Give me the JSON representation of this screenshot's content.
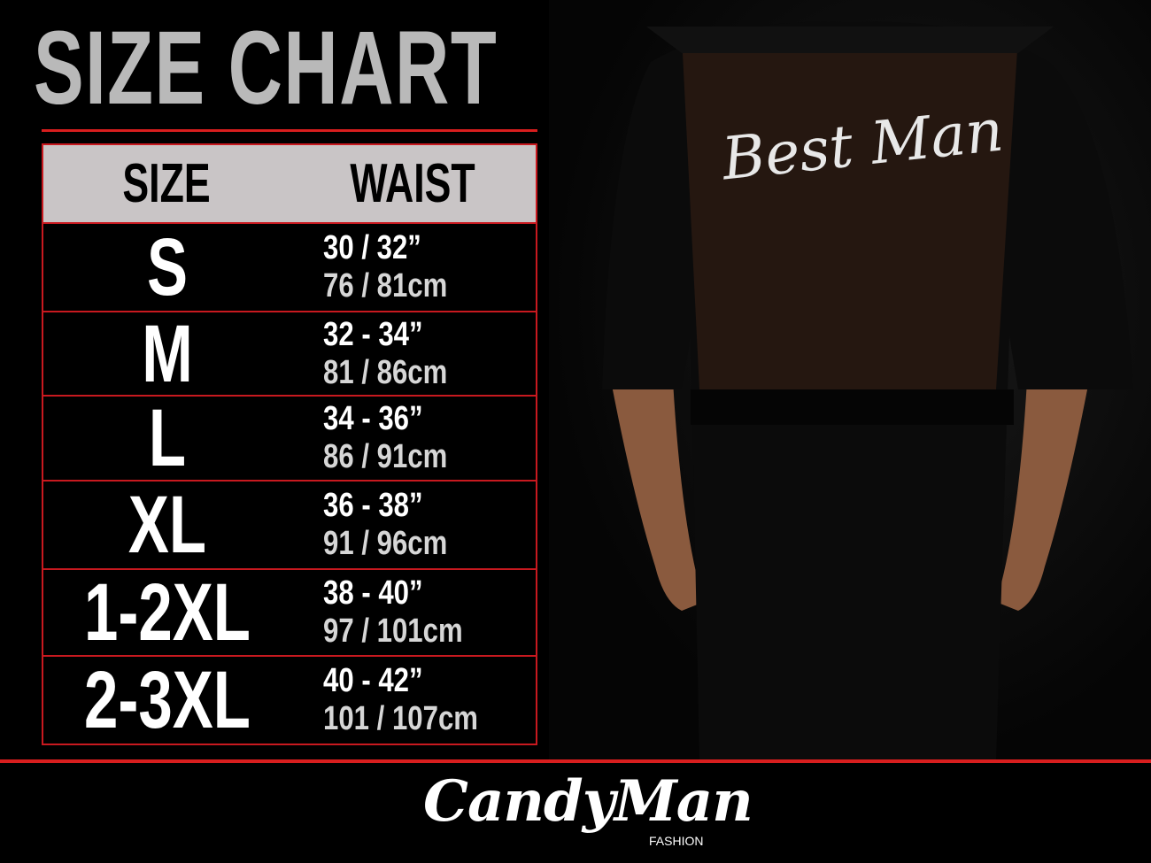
{
  "title": "SIZE CHART",
  "table": {
    "headers": [
      "SIZE",
      "WAIST"
    ],
    "rows": [
      {
        "size": "S",
        "inches": "30 / 32”",
        "cm": "76 / 81cm"
      },
      {
        "size": "M",
        "inches": "32 - 34”",
        "cm": "81 / 86cm"
      },
      {
        "size": "L",
        "inches": "34 - 36”",
        "cm": "86 / 91cm"
      },
      {
        "size": "XL",
        "inches": "36 - 38”",
        "cm": "91 / 96cm"
      },
      {
        "size": "1-2XL",
        "inches": "38 - 40”",
        "cm": "97 / 101cm"
      },
      {
        "size": "2-3XL",
        "inches": "40 - 42”",
        "cm": "101 / 107cm"
      }
    ]
  },
  "product": {
    "garment_text": "Best Man"
  },
  "brand": {
    "name": "CandyMan",
    "tagline": "FASHION"
  },
  "colors": {
    "accent": "#d81e1e",
    "header_bg": "#c9c5c6",
    "title": "#b9b9b9"
  }
}
